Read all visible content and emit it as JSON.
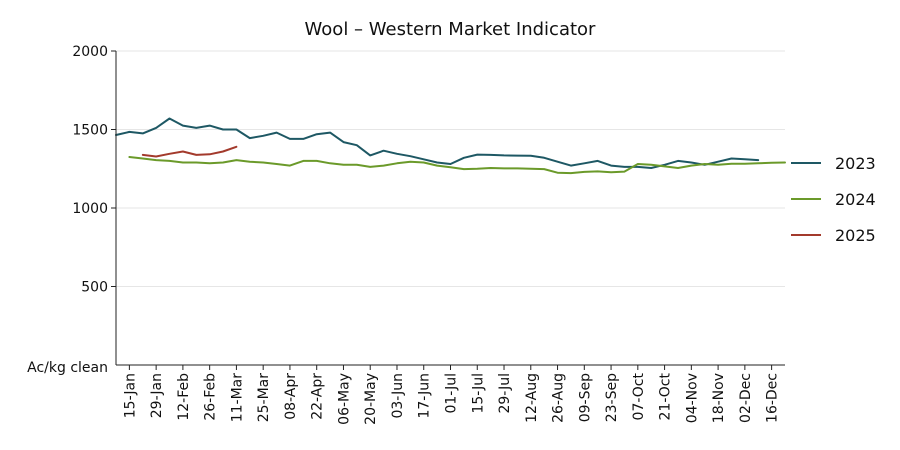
{
  "chart_data": {
    "type": "line",
    "title": "Wool – Western Market Indicator",
    "ylabel": "Ac/kg clean",
    "xlabel": "",
    "ylim": [
      0,
      2000
    ],
    "yticks": [
      500,
      1000,
      1500,
      2000
    ],
    "xlim_week": [
      0,
      50
    ],
    "grid": true,
    "legend_position": "right",
    "x_categories": [
      "15-Jan",
      "29-Jan",
      "12-Feb",
      "26-Feb",
      "11-Mar",
      "25-Mar",
      "08-Apr",
      "22-Apr",
      "06-May",
      "20-May",
      "03-Jun",
      "17-Jun",
      "01-Jul",
      "15-Jul",
      "29-Jul",
      "12-Aug",
      "26-Aug",
      "09-Sep",
      "23-Sep",
      "07-Oct",
      "21-Oct",
      "04-Nov",
      "18-Nov",
      "02-Dec",
      "16-Dec"
    ],
    "series": [
      {
        "name": "2023",
        "color": "#1e5864",
        "x": [
          0,
          1,
          2,
          3,
          4,
          5,
          6,
          7,
          8,
          9,
          10,
          11,
          12,
          13,
          14,
          15,
          16,
          17,
          18,
          19,
          20,
          21,
          22,
          23,
          24,
          25,
          26,
          27,
          28,
          29,
          30,
          31,
          32,
          33,
          34,
          35,
          36,
          37,
          38,
          39,
          40,
          41,
          42,
          43,
          44,
          45,
          46,
          47,
          48
        ],
        "values": [
          1465,
          1485,
          1475,
          1510,
          1570,
          1525,
          1510,
          1525,
          1500,
          1500,
          1445,
          1460,
          1480,
          1440,
          1440,
          1470,
          1480,
          1420,
          1400,
          1335,
          1365,
          1345,
          1330,
          1310,
          1290,
          1280,
          1320,
          1340,
          1338,
          1335,
          1334,
          1333,
          1320,
          1295,
          1270,
          1285,
          1300,
          1270,
          1262,
          1262,
          1255,
          1275,
          1300,
          1290,
          1275,
          1295,
          1315,
          1310,
          1305
        ]
      },
      {
        "name": "2024",
        "color": "#6b9a2a",
        "x": [
          1,
          2,
          3,
          4,
          5,
          6,
          7,
          8,
          9,
          10,
          11,
          12,
          13,
          14,
          15,
          16,
          17,
          18,
          19,
          20,
          21,
          22,
          23,
          24,
          25,
          26,
          27,
          28,
          29,
          30,
          31,
          32,
          33,
          34,
          35,
          36,
          37,
          38,
          39,
          40,
          41,
          42,
          43,
          44,
          45,
          46,
          47,
          48,
          49,
          50
        ],
        "values": [
          1325,
          1315,
          1305,
          1300,
          1290,
          1290,
          1285,
          1290,
          1305,
          1295,
          1290,
          1280,
          1270,
          1300,
          1300,
          1285,
          1275,
          1275,
          1262,
          1270,
          1285,
          1295,
          1290,
          1270,
          1260,
          1248,
          1250,
          1255,
          1252,
          1252,
          1250,
          1248,
          1225,
          1222,
          1230,
          1233,
          1228,
          1232,
          1280,
          1275,
          1265,
          1255,
          1270,
          1280,
          1275,
          1282,
          1282,
          1285,
          1288,
          1290
        ]
      },
      {
        "name": "2025",
        "color": "#a33a2c",
        "x": [
          2,
          3,
          4,
          5,
          6,
          7,
          8,
          9
        ],
        "values": [
          1338,
          1328,
          1345,
          1360,
          1338,
          1342,
          1360,
          1390
        ]
      }
    ]
  }
}
